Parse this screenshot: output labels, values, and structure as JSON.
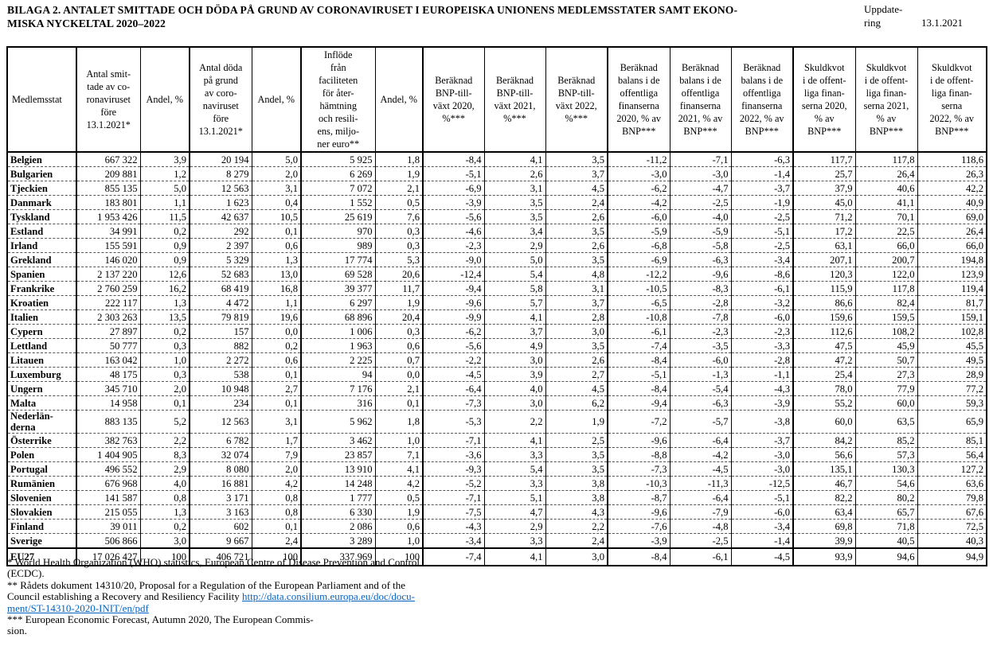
{
  "title": "BILAGA 2. ANTALET SMITTADE OCH DÖDA PÅ GRUND AV CORONAVIRUSET I EUROPEISKA UNIONENS MEDLEMSSTATER SAMT EKONO-\nMISKA NYCKELTAL 2020–2022",
  "update": {
    "label": "Uppdate-\nring",
    "date": "13.1.2021"
  },
  "colors": {
    "text": "#000000",
    "link": "#0563C1",
    "border": "#000000"
  },
  "table": {
    "headers": [
      "Medlemsstat",
      "Antal smit-\ntade av co-\nronaviruset\nföre\n13.1.2021*",
      "Andel, %",
      "Antal döda\npå grund\nav coro-\nnaviruset\nföre\n13.1.2021*",
      "Andel, %",
      "Inflöde\nfrån\nfaciliteten\nför åter-\nhämtning\noch resili-\nens, miljo-\nner euro**",
      "Andel, %",
      "Beräknad\nBNP-till-\nväxt 2020,\n%***",
      "Beräknad\nBNP-till-\nväxt 2021,\n%***",
      "Beräknad\nBNP-till-\nväxt 2022,\n%***",
      "Beräknad\nbalans i de\noffentliga\nfinanserna\n2020, % av\nBNP***",
      "Beräknad\nbalans i de\noffentliga\nfinanserna\n2021, % av\nBNP***",
      "Beräknad\nbalans i de\noffentliga\nfinanserna\n2022, % av\nBNP***",
      "Skuldkvot\ni de offent-\nliga finan-\nserna 2020,\n% av\nBNP***",
      "Skuldkvot\ni de offent-\nliga finan-\nserna 2021,\n% av\nBNP***",
      "Skuldkvot\ni de offent-\nliga finan-\nserna\n2022, % av\nBNP***"
    ],
    "rows": [
      {
        "name": "Belgien",
        "values": [
          "667 322",
          "3,9",
          "20 194",
          "5,0",
          "5 925",
          "1,8",
          "-8,4",
          "4,1",
          "3,5",
          "-11,2",
          "-7,1",
          "-6,3",
          "117,7",
          "117,8",
          "118,6"
        ]
      },
      {
        "name": "Bulgarien",
        "values": [
          "209 881",
          "1,2",
          "8 279",
          "2,0",
          "6 269",
          "1,9",
          "-5,1",
          "2,6",
          "3,7",
          "-3,0",
          "-3,0",
          "-1,4",
          "25,7",
          "26,4",
          "26,3"
        ]
      },
      {
        "name": "Tjeckien",
        "values": [
          "855 135",
          "5,0",
          "12 563",
          "3,1",
          "7 072",
          "2,1",
          "-6,9",
          "3,1",
          "4,5",
          "-6,2",
          "-4,7",
          "-3,7",
          "37,9",
          "40,6",
          "42,2"
        ]
      },
      {
        "name": "Danmark",
        "values": [
          "183 801",
          "1,1",
          "1 623",
          "0,4",
          "1 552",
          "0,5",
          "-3,9",
          "3,5",
          "2,4",
          "-4,2",
          "-2,5",
          "-1,9",
          "45,0",
          "41,1",
          "40,9"
        ]
      },
      {
        "name": "Tyskland",
        "values": [
          "1 953 426",
          "11,5",
          "42 637",
          "10,5",
          "25 619",
          "7,6",
          "-5,6",
          "3,5",
          "2,6",
          "-6,0",
          "-4,0",
          "-2,5",
          "71,2",
          "70,1",
          "69,0"
        ]
      },
      {
        "name": "Estland",
        "values": [
          "34 991",
          "0,2",
          "292",
          "0,1",
          "970",
          "0,3",
          "-4,6",
          "3,4",
          "3,5",
          "-5,9",
          "-5,9",
          "-5,1",
          "17,2",
          "22,5",
          "26,4"
        ]
      },
      {
        "name": "Irland",
        "values": [
          "155 591",
          "0,9",
          "2 397",
          "0,6",
          "989",
          "0,3",
          "-2,3",
          "2,9",
          "2,6",
          "-6,8",
          "-5,8",
          "-2,5",
          "63,1",
          "66,0",
          "66,0"
        ]
      },
      {
        "name": "Grekland",
        "values": [
          "146 020",
          "0,9",
          "5 329",
          "1,3",
          "17 774",
          "5,3",
          "-9,0",
          "5,0",
          "3,5",
          "-6,9",
          "-6,3",
          "-3,4",
          "207,1",
          "200,7",
          "194,8"
        ]
      },
      {
        "name": "Spanien",
        "values": [
          "2 137 220",
          "12,6",
          "52 683",
          "13,0",
          "69 528",
          "20,6",
          "-12,4",
          "5,4",
          "4,8",
          "-12,2",
          "-9,6",
          "-8,6",
          "120,3",
          "122,0",
          "123,9"
        ]
      },
      {
        "name": "Frankrike",
        "values": [
          "2 760 259",
          "16,2",
          "68 419",
          "16,8",
          "39 377",
          "11,7",
          "-9,4",
          "5,8",
          "3,1",
          "-10,5",
          "-8,3",
          "-6,1",
          "115,9",
          "117,8",
          "119,4"
        ]
      },
      {
        "name": "Kroatien",
        "values": [
          "222 117",
          "1,3",
          "4 472",
          "1,1",
          "6 297",
          "1,9",
          "-9,6",
          "5,7",
          "3,7",
          "-6,5",
          "-2,8",
          "-3,2",
          "86,6",
          "82,4",
          "81,7"
        ]
      },
      {
        "name": "Italien",
        "values": [
          "2 303 263",
          "13,5",
          "79 819",
          "19,6",
          "68 896",
          "20,4",
          "-9,9",
          "4,1",
          "2,8",
          "-10,8",
          "-7,8",
          "-6,0",
          "159,6",
          "159,5",
          "159,1"
        ]
      },
      {
        "name": "Cypern",
        "values": [
          "27 897",
          "0,2",
          "157",
          "0,0",
          "1 006",
          "0,3",
          "-6,2",
          "3,7",
          "3,0",
          "-6,1",
          "-2,3",
          "-2,3",
          "112,6",
          "108,2",
          "102,8"
        ]
      },
      {
        "name": "Lettland",
        "values": [
          "50 777",
          "0,3",
          "882",
          "0,2",
          "1 963",
          "0,6",
          "-5,6",
          "4,9",
          "3,5",
          "-7,4",
          "-3,5",
          "-3,3",
          "47,5",
          "45,9",
          "45,5"
        ]
      },
      {
        "name": "Litauen",
        "values": [
          "163 042",
          "1,0",
          "2 272",
          "0,6",
          "2 225",
          "0,7",
          "-2,2",
          "3,0",
          "2,6",
          "-8,4",
          "-6,0",
          "-2,8",
          "47,2",
          "50,7",
          "49,5"
        ]
      },
      {
        "name": "Luxemburg",
        "values": [
          "48 175",
          "0,3",
          "538",
          "0,1",
          "94",
          "0,0",
          "-4,5",
          "3,9",
          "2,7",
          "-5,1",
          "-1,3",
          "-1,1",
          "25,4",
          "27,3",
          "28,9"
        ]
      },
      {
        "name": "Ungern",
        "values": [
          "345 710",
          "2,0",
          "10 948",
          "2,7",
          "7 176",
          "2,1",
          "-6,4",
          "4,0",
          "4,5",
          "-8,4",
          "-5,4",
          "-4,3",
          "78,0",
          "77,9",
          "77,2"
        ]
      },
      {
        "name": "Malta",
        "values": [
          "14 958",
          "0,1",
          "234",
          "0,1",
          "316",
          "0,1",
          "-7,3",
          "3,0",
          "6,2",
          "-9,4",
          "-6,3",
          "-3,9",
          "55,2",
          "60,0",
          "59,3"
        ]
      },
      {
        "name": "Nederlän-\nderna",
        "values": [
          "883 135",
          "5,2",
          "12 563",
          "3,1",
          "5 962",
          "1,8",
          "-5,3",
          "2,2",
          "1,9",
          "-7,2",
          "-5,7",
          "-3,8",
          "60,0",
          "63,5",
          "65,9"
        ]
      },
      {
        "name": "Österrike",
        "values": [
          "382 763",
          "2,2",
          "6 782",
          "1,7",
          "3 462",
          "1,0",
          "-7,1",
          "4,1",
          "2,5",
          "-9,6",
          "-6,4",
          "-3,7",
          "84,2",
          "85,2",
          "85,1"
        ]
      },
      {
        "name": "Polen",
        "values": [
          "1 404 905",
          "8,3",
          "32 074",
          "7,9",
          "23 857",
          "7,1",
          "-3,6",
          "3,3",
          "3,5",
          "-8,8",
          "-4,2",
          "-3,0",
          "56,6",
          "57,3",
          "56,4"
        ]
      },
      {
        "name": "Portugal",
        "values": [
          "496 552",
          "2,9",
          "8 080",
          "2,0",
          "13 910",
          "4,1",
          "-9,3",
          "5,4",
          "3,5",
          "-7,3",
          "-4,5",
          "-3,0",
          "135,1",
          "130,3",
          "127,2"
        ]
      },
      {
        "name": "Rumänien",
        "values": [
          "676 968",
          "4,0",
          "16 881",
          "4,2",
          "14 248",
          "4,2",
          "-5,2",
          "3,3",
          "3,8",
          "-10,3",
          "-11,3",
          "-12,5",
          "46,7",
          "54,6",
          "63,6"
        ]
      },
      {
        "name": "Slovenien",
        "values": [
          "141 587",
          "0,8",
          "3 171",
          "0,8",
          "1 777",
          "0,5",
          "-7,1",
          "5,1",
          "3,8",
          "-8,7",
          "-6,4",
          "-5,1",
          "82,2",
          "80,2",
          "79,8"
        ]
      },
      {
        "name": "Slovakien",
        "values": [
          "215 055",
          "1,3",
          "3 163",
          "0,8",
          "6 330",
          "1,9",
          "-7,5",
          "4,7",
          "4,3",
          "-9,6",
          "-7,9",
          "-6,0",
          "63,4",
          "65,7",
          "67,6"
        ]
      },
      {
        "name": "Finland",
        "values": [
          "39 011",
          "0,2",
          "602",
          "0,1",
          "2 086",
          "0,6",
          "-4,3",
          "2,9",
          "2,2",
          "-7,6",
          "-4,8",
          "-3,4",
          "69,8",
          "71,8",
          "72,5"
        ]
      },
      {
        "name": "Sverige",
        "values": [
          "506 866",
          "3,0",
          "9 667",
          "2,4",
          "3 289",
          "1,0",
          "-3,4",
          "3,3",
          "2,4",
          "-3,9",
          "-2,5",
          "-1,4",
          "39,9",
          "40,5",
          "40,3"
        ]
      }
    ],
    "total": {
      "name": "EU27",
      "values": [
        "17 026 427",
        "100",
        "406 721",
        "100",
        "337 969",
        "100",
        "-7,4",
        "4,1",
        "3,0",
        "-8,4",
        "-6,1",
        "-4,5",
        "93,9",
        "94,6",
        "94,9"
      ]
    }
  },
  "footnotes": {
    "note1": "* World Health Organization (WHO) statistics, European Centre of Disease Prevention and Control\n(ECDC).",
    "note2_text": "** Rådets dokument 14310/20, Proposal for a Regulation of the European Parliament and of the\nCouncil establishing a Recovery and Resiliency Facility ",
    "note2_link": "http://data.consilium.europa.eu/doc/docu-\nment/ST-14310-2020-INIT/en/pdf",
    "note3": "*** European Economic Forecast, Autumn 2020, The European Commis-\nsion."
  }
}
